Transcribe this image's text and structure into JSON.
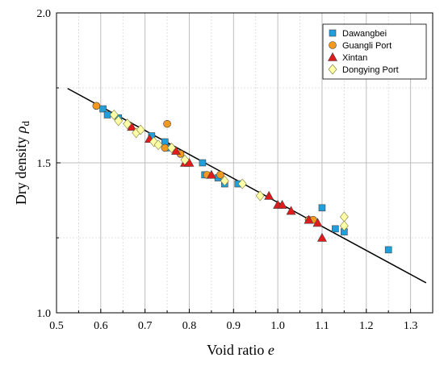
{
  "chart_data": {
    "type": "scatter",
    "xlabel": "Void ratio",
    "xlabel_var": "e",
    "ylabel": "Dry density",
    "ylabel_var": "ρ",
    "ylabel_sub": "d",
    "xlim": [
      0.5,
      1.35
    ],
    "ylim": [
      1.0,
      2.0
    ],
    "xticks": [
      "0.5",
      "0.6",
      "0.7",
      "0.8",
      "0.9",
      "1.0",
      "1.1",
      "1.2",
      "1.3"
    ],
    "yticks": [
      "1.0",
      "1.5",
      "2.0"
    ],
    "grid": "dashed minor + solid major",
    "legend_position": "top-right",
    "series": [
      {
        "name": "Dawangbei",
        "marker": "square",
        "color": "#1f9fdc",
        "points": [
          [
            0.605,
            1.68
          ],
          [
            0.615,
            1.66
          ],
          [
            0.64,
            1.65
          ],
          [
            0.715,
            1.59
          ],
          [
            0.745,
            1.57
          ],
          [
            0.755,
            1.55
          ],
          [
            0.83,
            1.5
          ],
          [
            0.835,
            1.46
          ],
          [
            0.865,
            1.45
          ],
          [
            0.88,
            1.43
          ],
          [
            0.91,
            1.43
          ],
          [
            1.1,
            1.35
          ],
          [
            1.13,
            1.28
          ],
          [
            1.15,
            1.27
          ],
          [
            1.25,
            1.21
          ]
        ]
      },
      {
        "name": "Guangli Port",
        "marker": "circle",
        "color": "#f39a1e",
        "points": [
          [
            0.59,
            1.69
          ],
          [
            0.75,
            1.63
          ],
          [
            0.745,
            1.55
          ],
          [
            0.78,
            1.53
          ],
          [
            0.84,
            1.46
          ],
          [
            0.87,
            1.46
          ],
          [
            1.07,
            1.31
          ],
          [
            1.08,
            1.31
          ]
        ]
      },
      {
        "name": "Xintan",
        "marker": "triangle",
        "color": "#e01b1b",
        "points": [
          [
            0.67,
            1.62
          ],
          [
            0.71,
            1.58
          ],
          [
            0.77,
            1.54
          ],
          [
            0.79,
            1.5
          ],
          [
            0.8,
            1.5
          ],
          [
            0.85,
            1.46
          ],
          [
            0.98,
            1.39
          ],
          [
            1.0,
            1.36
          ],
          [
            1.01,
            1.36
          ],
          [
            1.03,
            1.34
          ],
          [
            1.07,
            1.31
          ],
          [
            1.09,
            1.3
          ],
          [
            1.1,
            1.25
          ]
        ]
      },
      {
        "name": "Dongying Port",
        "marker": "diamond",
        "color": "#ffffa8",
        "points": [
          [
            0.63,
            1.66
          ],
          [
            0.64,
            1.64
          ],
          [
            0.66,
            1.63
          ],
          [
            0.68,
            1.6
          ],
          [
            0.69,
            1.61
          ],
          [
            0.72,
            1.57
          ],
          [
            0.73,
            1.56
          ],
          [
            0.76,
            1.55
          ],
          [
            0.79,
            1.51
          ],
          [
            0.88,
            1.44
          ],
          [
            0.92,
            1.43
          ],
          [
            0.96,
            1.39
          ],
          [
            1.15,
            1.32
          ],
          [
            1.15,
            1.29
          ]
        ]
      }
    ],
    "fit_line": {
      "x": [
        0.525,
        1.335
      ],
      "y": [
        1.748,
        1.1
      ]
    }
  }
}
